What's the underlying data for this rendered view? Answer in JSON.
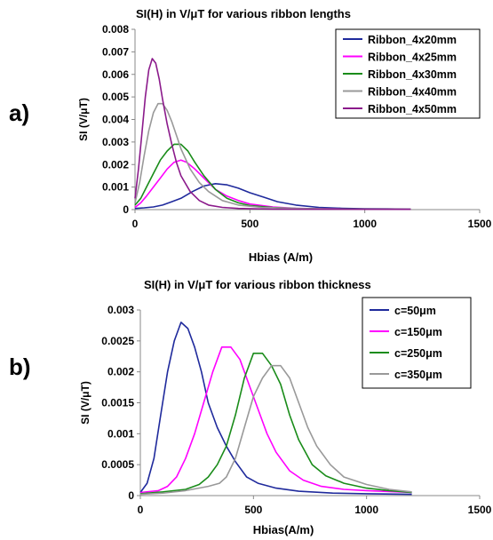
{
  "figure": {
    "panel_labels": [
      "a)",
      "b)"
    ]
  },
  "chart_data": [
    {
      "type": "line",
      "title": "SI(H) in V/μT for various ribbon lengths",
      "xlabel": "Hbias (A/m)",
      "ylabel": "SI (V/μT)",
      "xlim": [
        0,
        1500
      ],
      "ylim": [
        0,
        0.008
      ],
      "xticks": [
        0,
        500,
        1000,
        1500
      ],
      "xtick_labels": [
        "0",
        "500",
        "1000",
        "1500"
      ],
      "yticks": [
        0,
        0.001,
        0.002,
        0.003,
        0.004,
        0.005,
        0.006,
        0.007,
        0.008
      ],
      "ytick_labels": [
        "0",
        "0.001",
        "0.002",
        "0.003",
        "0.004",
        "0.005",
        "0.006",
        "0.007",
        "0.008"
      ],
      "grid": false,
      "legend_position": "top-right",
      "series": [
        {
          "name": "Ribbon_4x20mm",
          "color": "#1f2a9c",
          "x": [
            0,
            40,
            80,
            120,
            160,
            200,
            250,
            300,
            350,
            400,
            450,
            500,
            560,
            620,
            700,
            800,
            900,
            1000,
            1100,
            1200
          ],
          "y": [
            5e-05,
            8e-05,
            0.00012,
            0.0002,
            0.00035,
            0.0005,
            0.0008,
            0.00105,
            0.00115,
            0.0011,
            0.00095,
            0.00075,
            0.00055,
            0.00035,
            0.0002,
            0.0001,
            6e-05,
            4e-05,
            3e-05,
            2e-05
          ]
        },
        {
          "name": "Ribbon_4x25mm",
          "color": "#ff00ff",
          "x": [
            0,
            25,
            50,
            80,
            110,
            140,
            170,
            200,
            225,
            260,
            300,
            350,
            400,
            450,
            500,
            600,
            700,
            800,
            1000,
            1200
          ],
          "y": [
            0.0001,
            0.0003,
            0.0006,
            0.001,
            0.0014,
            0.0018,
            0.0021,
            0.0022,
            0.0021,
            0.0018,
            0.0014,
            0.0009,
            0.0006,
            0.0004,
            0.00025,
            0.00012,
            6e-05,
            4e-05,
            2e-05,
            1e-05
          ]
        },
        {
          "name": "Ribbon_4x30mm",
          "color": "#1a8c1a",
          "x": [
            0,
            25,
            50,
            80,
            110,
            140,
            170,
            200,
            230,
            260,
            300,
            350,
            400,
            450,
            500,
            600,
            700,
            800,
            1000,
            1200
          ],
          "y": [
            0.0002,
            0.0005,
            0.001,
            0.0016,
            0.0022,
            0.0026,
            0.0029,
            0.0029,
            0.0026,
            0.0021,
            0.0015,
            0.0009,
            0.0005,
            0.0003,
            0.00018,
            9e-05,
            5e-05,
            3e-05,
            2e-05,
            1e-05
          ]
        },
        {
          "name": "Ribbon_4x40mm",
          "color": "#999999",
          "x": [
            0,
            20,
            40,
            60,
            80,
            100,
            120,
            140,
            160,
            180,
            200,
            240,
            280,
            320,
            380,
            450,
            550,
            700,
            900,
            1200
          ],
          "y": [
            0.0003,
            0.0012,
            0.0024,
            0.0035,
            0.0043,
            0.0047,
            0.0047,
            0.0044,
            0.0039,
            0.0033,
            0.0027,
            0.0018,
            0.0012,
            0.0008,
            0.0004,
            0.0002,
            0.0001,
            5e-05,
            2e-05,
            1e-05
          ]
        },
        {
          "name": "Ribbon_4x50mm",
          "color": "#8b1a8b",
          "x": [
            0,
            15,
            30,
            45,
            60,
            75,
            90,
            105,
            120,
            140,
            160,
            180,
            200,
            240,
            280,
            320,
            380,
            450,
            600,
            1200
          ],
          "y": [
            0.0005,
            0.0018,
            0.0034,
            0.005,
            0.0062,
            0.0067,
            0.0065,
            0.0058,
            0.0049,
            0.0038,
            0.0029,
            0.0021,
            0.0015,
            0.0008,
            0.0004,
            0.0002,
            0.0001,
            5e-05,
            2e-05,
            1e-05
          ]
        }
      ]
    },
    {
      "type": "line",
      "title": "SI(H) in V/μT for various ribbon thickness",
      "xlabel": "Hbias(A/m)",
      "ylabel": "SI (V/μT)",
      "xlim": [
        0,
        1500
      ],
      "ylim": [
        0,
        0.003
      ],
      "xticks": [
        0,
        500,
        1000,
        1500
      ],
      "xtick_labels": [
        "0",
        "500",
        "1000",
        "1500"
      ],
      "yticks": [
        0,
        0.0005,
        0.001,
        0.0015,
        0.002,
        0.0025,
        0.003
      ],
      "ytick_labels": [
        "0",
        "0.0005",
        "0.001",
        "0.0015",
        "0.002",
        "0.0025",
        "0.003"
      ],
      "grid": false,
      "legend_position": "top-right",
      "series": [
        {
          "name": "c=50μm",
          "color": "#1f2a9c",
          "x": [
            0,
            30,
            60,
            90,
            120,
            150,
            180,
            210,
            240,
            270,
            300,
            340,
            380,
            420,
            470,
            520,
            600,
            700,
            850,
            1000,
            1200
          ],
          "y": [
            5e-05,
            0.0002,
            0.0006,
            0.0013,
            0.002,
            0.0025,
            0.0028,
            0.0027,
            0.0024,
            0.002,
            0.0015,
            0.0011,
            0.0008,
            0.00055,
            0.0003,
            0.0002,
            0.00012,
            7e-05,
            4e-05,
            3e-05,
            2e-05
          ]
        },
        {
          "name": "c=150μm",
          "color": "#ff00ff",
          "x": [
            0,
            80,
            120,
            160,
            200,
            240,
            280,
            320,
            360,
            400,
            440,
            480,
            520,
            560,
            600,
            660,
            720,
            800,
            900,
            1000,
            1200
          ],
          "y": [
            5e-05,
            8e-05,
            0.00015,
            0.0003,
            0.0006,
            0.001,
            0.0015,
            0.002,
            0.0024,
            0.0024,
            0.0022,
            0.0018,
            0.0014,
            0.001,
            0.0007,
            0.0004,
            0.00025,
            0.00015,
            0.0001,
            8e-05,
            5e-05
          ]
        },
        {
          "name": "c=250μm",
          "color": "#1a8c1a",
          "x": [
            0,
            100,
            200,
            260,
            300,
            340,
            380,
            420,
            460,
            500,
            540,
            580,
            620,
            660,
            700,
            760,
            820,
            900,
            1000,
            1100,
            1200
          ],
          "y": [
            3e-05,
            6e-05,
            0.0001,
            0.00018,
            0.0003,
            0.0005,
            0.0008,
            0.0013,
            0.0019,
            0.0023,
            0.0023,
            0.0021,
            0.0018,
            0.0013,
            0.0009,
            0.0005,
            0.00032,
            0.0002,
            0.00012,
            8e-05,
            5e-05
          ]
        },
        {
          "name": "c=350μm",
          "color": "#999999",
          "x": [
            0,
            100,
            200,
            300,
            350,
            380,
            420,
            460,
            500,
            540,
            580,
            620,
            660,
            700,
            740,
            780,
            840,
            900,
            1000,
            1100,
            1200
          ],
          "y": [
            2e-05,
            4e-05,
            8e-05,
            0.00015,
            0.0002,
            0.0003,
            0.0006,
            0.0011,
            0.0016,
            0.0019,
            0.0021,
            0.0021,
            0.0019,
            0.0015,
            0.0011,
            0.0008,
            0.0005,
            0.0003,
            0.00018,
            0.0001,
            6e-05
          ]
        }
      ]
    }
  ]
}
